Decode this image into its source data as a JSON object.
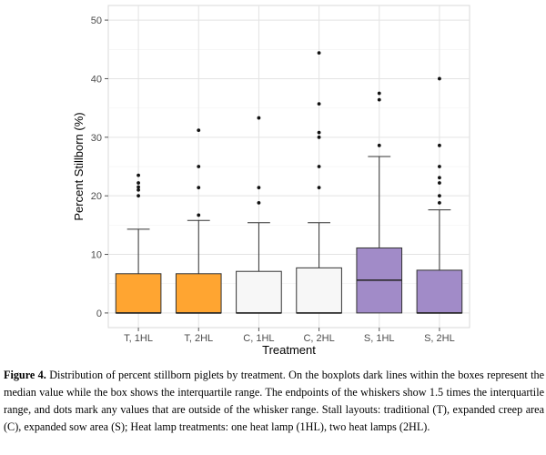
{
  "chart_data": {
    "type": "box",
    "xlabel": "Treatment",
    "ylabel": "Percent Stillborn (%)",
    "ylim": [
      -2.5,
      52.5
    ],
    "yticks": [
      0,
      10,
      20,
      30,
      40,
      50
    ],
    "grid": true,
    "categories": [
      "T, 1HL",
      "T, 2HL",
      "C, 1HL",
      "C, 2HL",
      "S, 1HL",
      "S, 2HL"
    ],
    "boxes": [
      {
        "category": "T, 1HL",
        "whisker_low": 0,
        "q1": 0,
        "median": 0,
        "q3": 6.7,
        "whisker_high": 14.3,
        "outliers": [
          20.0,
          21.0,
          21.5,
          22.2,
          23.5
        ],
        "fill": "#ffa531"
      },
      {
        "category": "T, 2HL",
        "whisker_low": 0,
        "q1": 0,
        "median": 0,
        "q3": 6.7,
        "whisker_high": 15.8,
        "outliers": [
          16.7,
          21.4,
          25.0,
          31.2
        ],
        "fill": "#ffa531"
      },
      {
        "category": "C, 1HL",
        "whisker_low": 0,
        "q1": 0,
        "median": 0,
        "q3": 7.1,
        "whisker_high": 15.4,
        "outliers": [
          18.8,
          21.4,
          33.3
        ],
        "fill": "#f7f7f7"
      },
      {
        "category": "C, 2HL",
        "whisker_low": 0,
        "q1": 0,
        "median": 0,
        "q3": 7.7,
        "whisker_high": 15.4,
        "outliers": [
          21.4,
          25.0,
          30.0,
          30.8,
          35.7,
          44.4
        ],
        "fill": "#f7f7f7"
      },
      {
        "category": "S, 1HL",
        "whisker_low": 0,
        "q1": 0,
        "median": 5.6,
        "q3": 11.1,
        "whisker_high": 26.7,
        "outliers": [
          28.6,
          36.4,
          37.5
        ],
        "fill": "#a18bc8"
      },
      {
        "category": "S, 2HL",
        "whisker_low": 0,
        "q1": 0,
        "median": 0,
        "q3": 7.3,
        "whisker_high": 17.6,
        "outliers": [
          18.8,
          20.0,
          22.2,
          23.1,
          25.0,
          28.6,
          40.0
        ],
        "fill": "#a18bc8"
      }
    ]
  },
  "caption": {
    "label": "Figure 4.",
    "text": "Distribution of percent stillborn piglets by treatment. On the boxplots dark lines within the boxes represent the median value while the box shows the interquartile range. The endpoints of the whiskers show 1.5 times the interquartile range, and dots mark any values that are outside of the whisker range. Stall layouts: traditional (T), expanded creep area (C), expanded sow area (S); Heat lamp treatments: one heat lamp (1HL), two heat lamps (2HL)."
  }
}
